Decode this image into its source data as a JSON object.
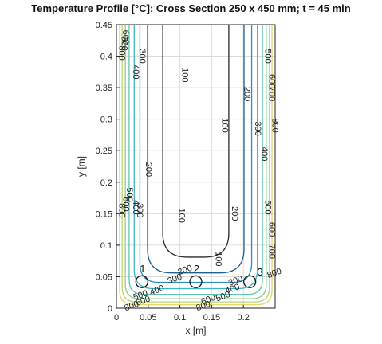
{
  "chart_data": {
    "type": "contour",
    "title": "Temperature Profile [°C]: Cross Section 250 x 450 mm; t = 45 min",
    "xlabel": "x [m]",
    "ylabel": "y [m]",
    "xlim": [
      0,
      0.25
    ],
    "ylim": [
      0,
      0.45
    ],
    "xticks": [
      "0",
      "0.05",
      "0.1",
      "0.15",
      "0.2"
    ],
    "yticks": [
      "0",
      "0.05",
      "0.1",
      "0.15",
      "0.2",
      "0.25",
      "0.3",
      "0.35",
      "0.4",
      "0.45"
    ],
    "grid": true,
    "contour_levels": [
      {
        "level": 100,
        "color": "#2b2b2b"
      },
      {
        "level": 200,
        "color": "#1f5f8f"
      },
      {
        "level": 300,
        "color": "#2a8fc1"
      },
      {
        "level": 400,
        "color": "#3fb3c4"
      },
      {
        "level": 500,
        "color": "#5fc4ae"
      },
      {
        "level": 600,
        "color": "#8fcf8a"
      },
      {
        "level": 700,
        "color": "#bcd472"
      },
      {
        "level": 800,
        "color": "#e0d76e"
      }
    ],
    "contour_labels": [
      {
        "text": "100",
        "x": 0.107,
        "y": 0.37
      },
      {
        "text": "100",
        "x": 0.17,
        "y": 0.29
      },
      {
        "text": "100",
        "x": 0.102,
        "y": 0.147
      },
      {
        "text": "100",
        "x": 0.16,
        "y": 0.078
      },
      {
        "text": "200",
        "x": 0.205,
        "y": 0.34
      },
      {
        "text": "300",
        "x": 0.222,
        "y": 0.285
      },
      {
        "text": "400",
        "x": 0.232,
        "y": 0.245
      },
      {
        "text": "500",
        "x": 0.238,
        "y": 0.4
      },
      {
        "text": "600",
        "x": 0.244,
        "y": 0.36
      },
      {
        "text": "700",
        "x": 0.244,
        "y": 0.34
      },
      {
        "text": "800",
        "x": 0.249,
        "y": 0.29
      },
      {
        "text": "500",
        "x": 0.238,
        "y": 0.16
      },
      {
        "text": "600",
        "x": 0.244,
        "y": 0.125
      },
      {
        "text": "700",
        "x": 0.244,
        "y": 0.09
      },
      {
        "text": "800",
        "x": 0.249,
        "y": 0.055
      },
      {
        "text": "300",
        "x": 0.04,
        "y": 0.4
      },
      {
        "text": "400",
        "x": 0.03,
        "y": 0.375
      },
      {
        "text": "500",
        "x": 0.012,
        "y": 0.42
      },
      {
        "text": "600",
        "x": 0.014,
        "y": 0.43
      },
      {
        "text": "800",
        "x": 0.008,
        "y": 0.405
      },
      {
        "text": "200",
        "x": 0.05,
        "y": 0.22
      },
      {
        "text": "300",
        "x": 0.036,
        "y": 0.155
      },
      {
        "text": "400",
        "x": 0.03,
        "y": 0.16
      },
      {
        "text": "500",
        "x": 0.02,
        "y": 0.18
      },
      {
        "text": "600",
        "x": 0.014,
        "y": 0.165
      },
      {
        "text": "800",
        "x": 0.008,
        "y": 0.155
      },
      {
        "text": "200",
        "x": 0.186,
        "y": 0.15
      },
      {
        "text": "200",
        "x": 0.108,
        "y": 0.06
      },
      {
        "text": "300",
        "x": 0.188,
        "y": 0.043
      },
      {
        "text": "300",
        "x": 0.092,
        "y": 0.046
      },
      {
        "text": "400",
        "x": 0.064,
        "y": 0.028
      },
      {
        "text": "400",
        "x": 0.183,
        "y": 0.03
      },
      {
        "text": "500",
        "x": 0.038,
        "y": 0.02
      },
      {
        "text": "500",
        "x": 0.168,
        "y": 0.018
      },
      {
        "text": "600",
        "x": 0.042,
        "y": 0.011
      },
      {
        "text": "600",
        "x": 0.145,
        "y": 0.013
      },
      {
        "text": "800",
        "x": 0.024,
        "y": 0.003
      },
      {
        "text": "800",
        "x": 0.137,
        "y": 0.003
      }
    ],
    "points": [
      {
        "label": "1",
        "x": 0.04,
        "y": 0.042
      },
      {
        "label": "2",
        "x": 0.125,
        "y": 0.042
      },
      {
        "label": "3",
        "x": 0.21,
        "y": 0.042
      }
    ]
  }
}
